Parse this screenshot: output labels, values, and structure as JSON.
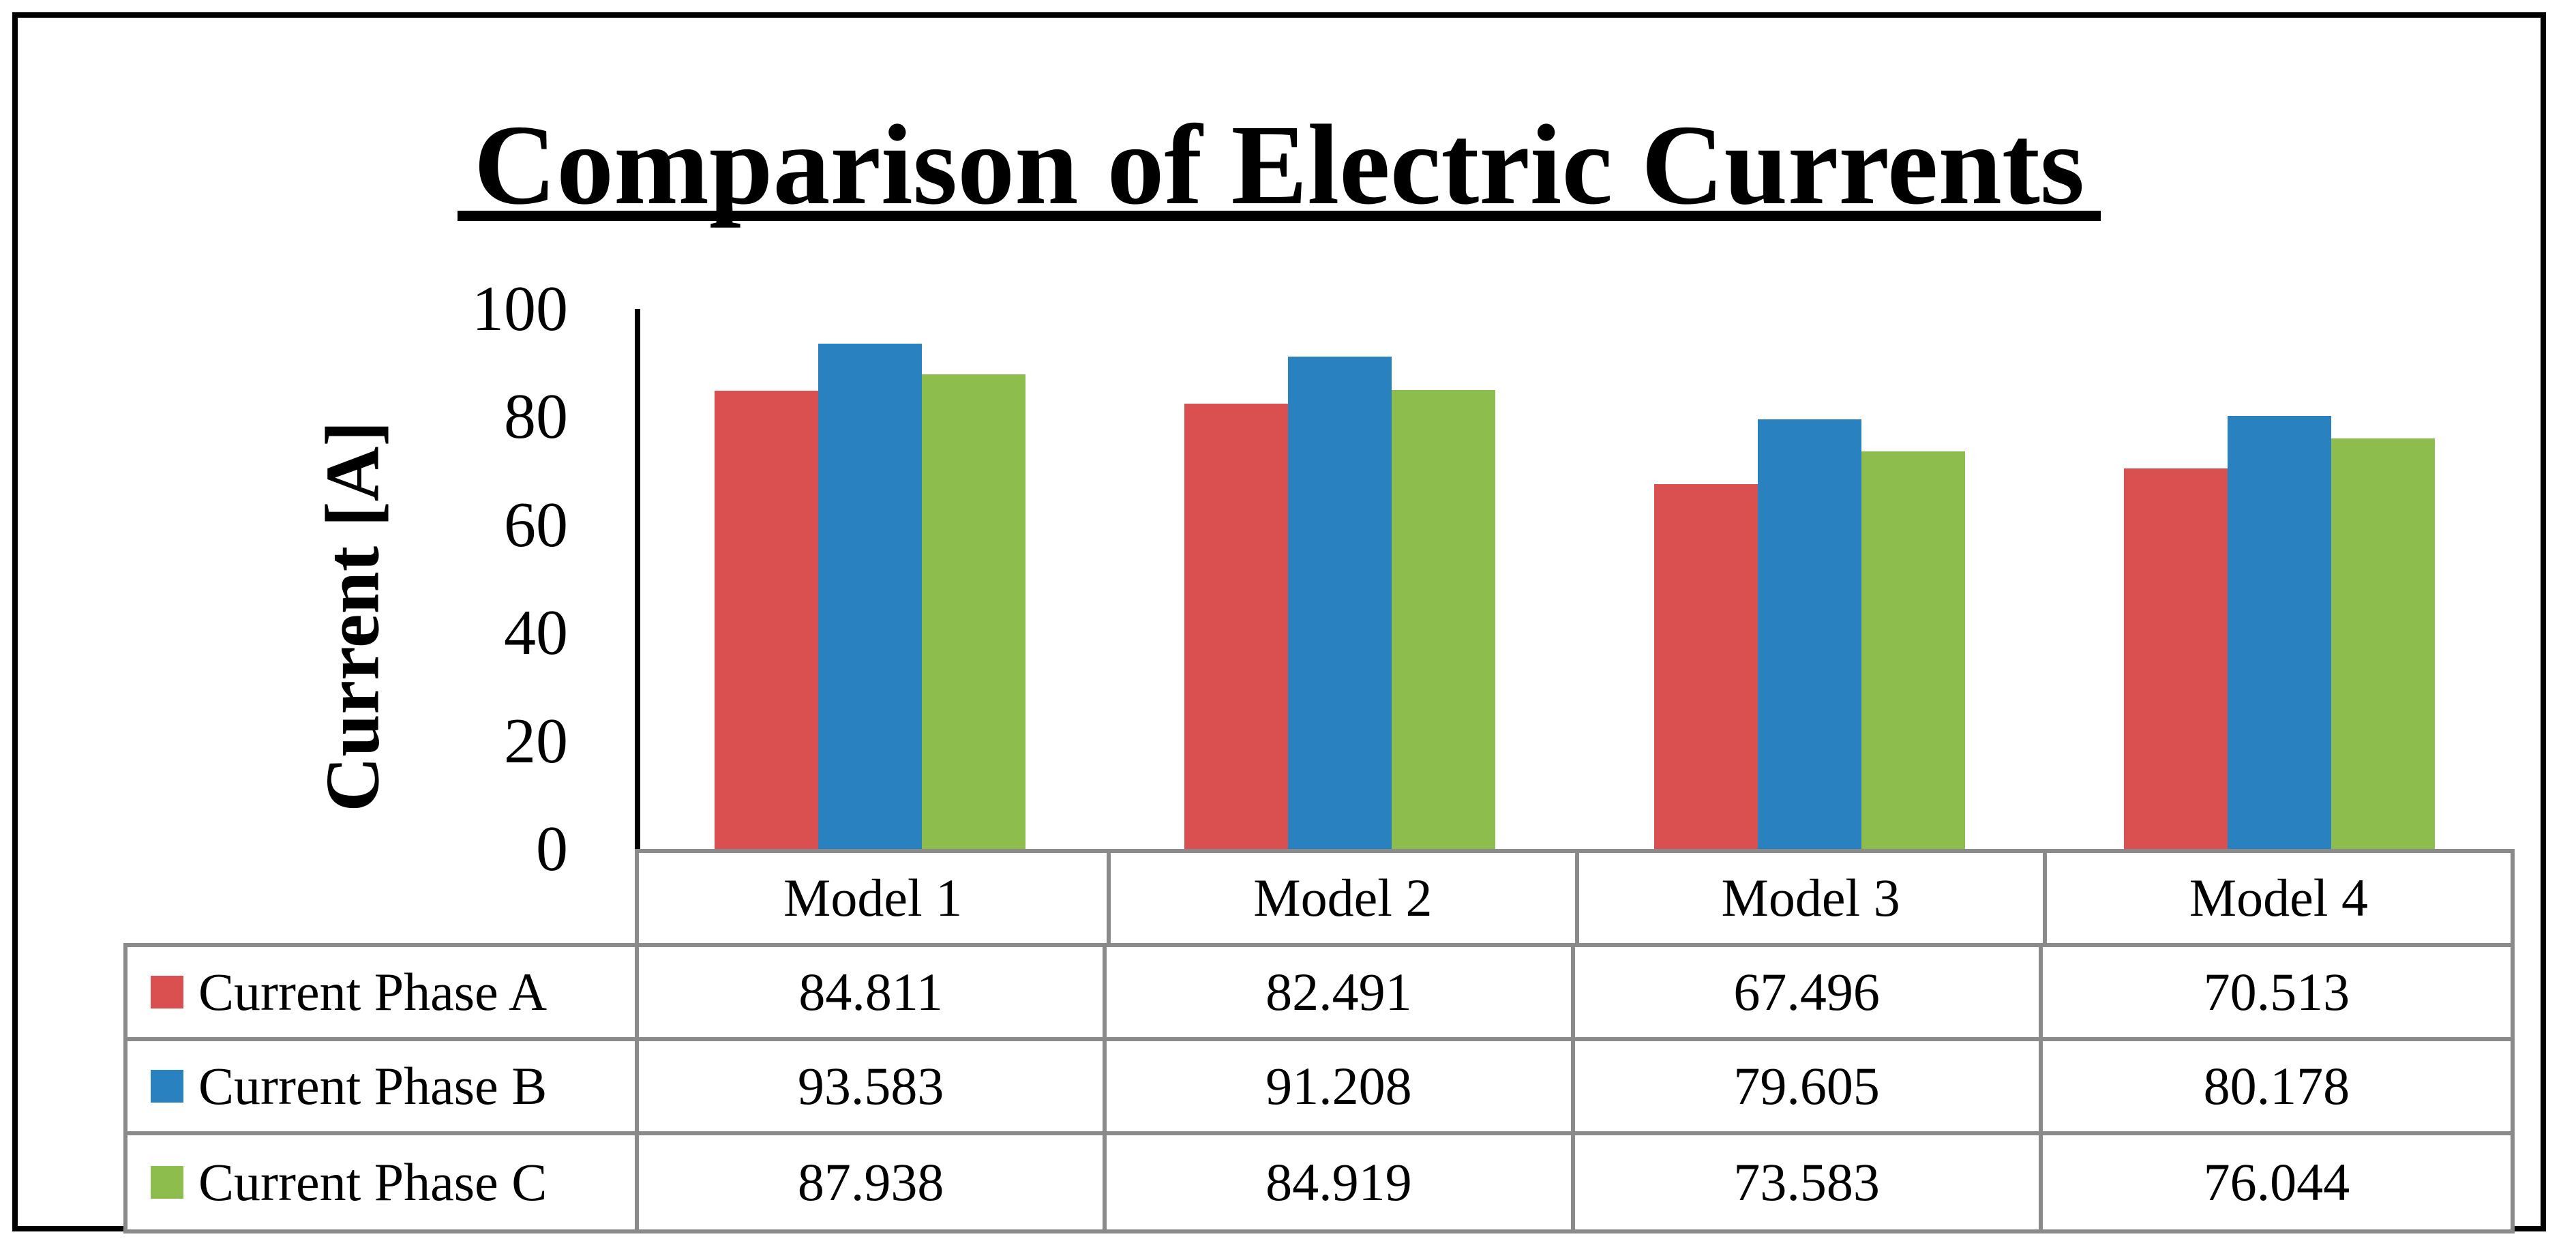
{
  "chart_data": {
    "type": "bar",
    "title": "Comparison of Electric Currents",
    "ylabel": "Current [A]",
    "xlabel": "",
    "ylim": [
      0,
      100
    ],
    "yticks": [
      0,
      20,
      40,
      60,
      80,
      100
    ],
    "grid": false,
    "legend_position": "data-table-left",
    "categories": [
      "Model 1",
      "Model 2",
      "Model 3",
      "Model 4"
    ],
    "series": [
      {
        "name": "Current Phase A",
        "color": "#DA5050",
        "values": [
          84.811,
          82.491,
          67.496,
          70.513
        ]
      },
      {
        "name": "Current Phase B",
        "color": "#2A81C0",
        "values": [
          93.583,
          91.208,
          79.605,
          80.178
        ]
      },
      {
        "name": "Current Phase C",
        "color": "#8CBD4D",
        "values": [
          87.938,
          84.919,
          73.583,
          76.044
        ]
      }
    ]
  },
  "colors": {
    "axis": "#000000",
    "table_border": "#8A8A8A",
    "text": "#000000",
    "background": "#FFFFFF"
  }
}
